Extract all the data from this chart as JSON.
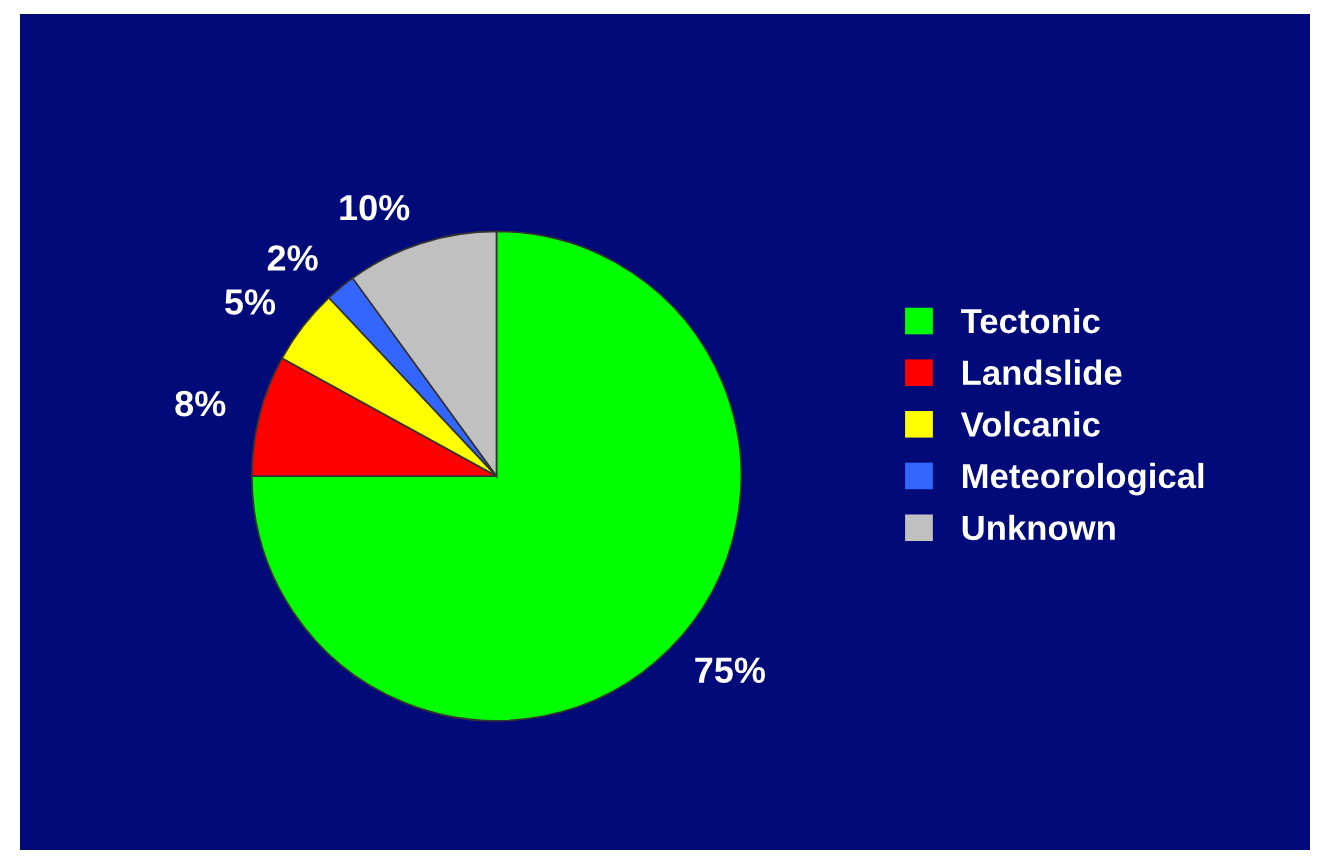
{
  "chart_data": {
    "type": "pie",
    "categories": [
      "Tectonic",
      "Landslide",
      "Volcanic",
      "Meteorological",
      "Unknown"
    ],
    "values": [
      75,
      8,
      5,
      2,
      10
    ],
    "value_labels": [
      "75%",
      "8%",
      "5%",
      "2%",
      "10%"
    ],
    "colors": [
      "#00ff00",
      "#ff0000",
      "#ffff00",
      "#3366ff",
      "#c0c0c0"
    ],
    "legend": "right"
  }
}
